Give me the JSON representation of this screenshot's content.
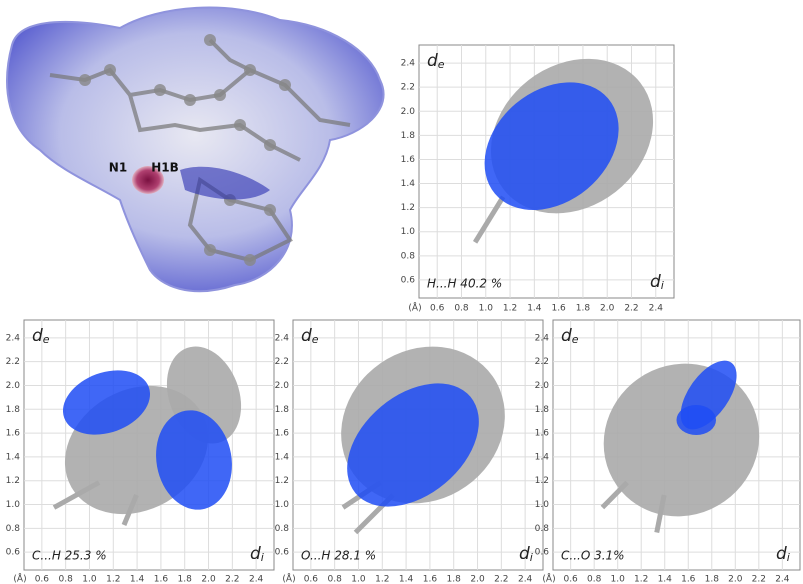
{
  "molecule": {
    "labels": [
      "N1",
      "H1B"
    ]
  },
  "chart_data": [
    {
      "type": "fingerprint",
      "annotation": "H...H 40.2 %",
      "xlabel": "d",
      "xlabel_sub": "i",
      "ylabel": "d",
      "ylabel_sub": "e",
      "xunit": "(Å)",
      "xlim": [
        0.45,
        2.55
      ],
      "ylim": [
        0.45,
        2.55
      ],
      "xticks": [
        0.6,
        0.8,
        {
          "value": 1,
          "label": "1.0"
        },
        1.2,
        1.4,
        1.6,
        1.8,
        {
          "value": 2,
          "label": "2.0"
        },
        2.2,
        2.4
      ],
      "yticks": [
        0.6,
        0.8,
        {
          "value": 1,
          "label": "1.0"
        },
        1.2,
        1.4,
        1.6,
        1.8,
        {
          "value": 2,
          "label": "2.0"
        },
        2.2,
        2.4
      ],
      "grid": true
    },
    {
      "type": "fingerprint",
      "annotation": "C...H 25.3 %",
      "xlabel": "d",
      "xlabel_sub": "i",
      "ylabel": "d",
      "ylabel_sub": "e",
      "xunit": "(Å)",
      "xlim": [
        0.45,
        2.55
      ],
      "ylim": [
        0.45,
        2.55
      ],
      "xticks": [
        0.6,
        0.8,
        {
          "value": 1,
          "label": "1.0"
        },
        1.2,
        1.4,
        1.6,
        1.8,
        {
          "value": 2,
          "label": "2.0"
        },
        2.2,
        2.4
      ],
      "yticks": [
        0.6,
        0.8,
        {
          "value": 1,
          "label": "1.0"
        },
        1.2,
        1.4,
        1.6,
        1.8,
        {
          "value": 2,
          "label": "2.0"
        },
        2.2,
        2.4
      ],
      "grid": true
    },
    {
      "type": "fingerprint",
      "annotation": "O...H 28.1 %",
      "xlabel": "d",
      "xlabel_sub": "i",
      "ylabel": "d",
      "ylabel_sub": "e",
      "xunit": "(Å)",
      "xlim": [
        0.45,
        2.55
      ],
      "ylim": [
        0.45,
        2.55
      ],
      "xticks": [
        0.6,
        0.8,
        {
          "value": 1,
          "label": "1.0"
        },
        1.2,
        1.4,
        1.6,
        1.8,
        {
          "value": 2,
          "label": "2.0"
        },
        2.2,
        2.4
      ],
      "yticks": [
        0.6,
        0.8,
        {
          "value": 1,
          "label": "1.0"
        },
        1.2,
        1.4,
        1.6,
        1.8,
        {
          "value": 2,
          "label": "2.0"
        },
        2.2,
        2.4
      ],
      "grid": true
    },
    {
      "type": "fingerprint",
      "annotation": "C...O 3.1%",
      "xlabel": "d",
      "xlabel_sub": "i",
      "ylabel": "d",
      "ylabel_sub": "e",
      "xunit": "(Å)",
      "xlim": [
        0.45,
        2.55
      ],
      "ylim": [
        0.45,
        2.55
      ],
      "xticks": [
        0.6,
        0.8,
        {
          "value": 1,
          "label": "1.0"
        },
        1.2,
        1.4,
        1.6,
        1.8,
        {
          "value": 2,
          "label": "2.0"
        },
        2.2,
        2.4
      ],
      "yticks": [
        0.6,
        0.8,
        {
          "value": 1,
          "label": "1.0"
        },
        1.2,
        1.4,
        1.6,
        1.8,
        {
          "value": 2,
          "label": "2.0"
        },
        2.2,
        2.4
      ],
      "grid": true
    }
  ]
}
